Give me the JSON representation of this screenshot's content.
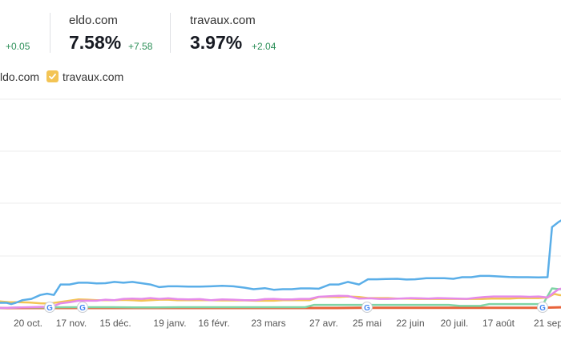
{
  "metrics": [
    {
      "name": "",
      "value": "",
      "delta": "+0.05"
    },
    {
      "name": "eldo.com",
      "value": "7.58%",
      "delta": "+7.58"
    },
    {
      "name": "travaux.com",
      "value": "3.97%",
      "delta": "+2.04"
    }
  ],
  "legend": [
    {
      "label": "ldo.com"
    },
    {
      "label": "travaux.com"
    }
  ],
  "colors": {
    "blue": "#5aaee8",
    "purple": "#e58ae9",
    "yellow": "#f3c454",
    "green": "#7ed4a5",
    "red": "#e8633a",
    "legend_yellow": "#f3c454",
    "grid": "#ececec"
  },
  "icons": {
    "update_marker": "google-icon",
    "checkbox": "check-icon"
  },
  "chart_data": {
    "type": "line",
    "x_tick_labels": [
      "20 oct.",
      "17 nov.",
      "15 déc.",
      "19 janv.",
      "16 févr.",
      "23 mars",
      "27 avr.",
      "25 mai",
      "22 juin",
      "20 juil.",
      "17 août",
      "21 sep"
    ],
    "ylim": [
      0,
      8
    ],
    "grid": "horizontal",
    "update_markers": [
      "17 oct.",
      "23 oct.",
      "9 mai",
      "5 sep"
    ],
    "series": [
      {
        "color": "#5aaee8",
        "points": [
          [
            0,
            0.2
          ],
          [
            3,
            0.2
          ],
          [
            5,
            0.15
          ],
          [
            7,
            0.2
          ],
          [
            10,
            0.3
          ],
          [
            14,
            0.35
          ],
          [
            18,
            0.5
          ],
          [
            21,
            0.55
          ],
          [
            24,
            0.5
          ],
          [
            27,
            0.9
          ],
          [
            31,
            0.9
          ],
          [
            35,
            0.97
          ],
          [
            39,
            0.97
          ],
          [
            43,
            0.94
          ],
          [
            47,
            0.95
          ],
          [
            51,
            1.0
          ],
          [
            55,
            0.97
          ],
          [
            59,
            1.0
          ],
          [
            63,
            0.95
          ],
          [
            67,
            0.9
          ],
          [
            71,
            0.8
          ],
          [
            75,
            0.83
          ],
          [
            79,
            0.83
          ],
          [
            84,
            0.82
          ],
          [
            89,
            0.82
          ],
          [
            94,
            0.83
          ],
          [
            99,
            0.85
          ],
          [
            104,
            0.83
          ],
          [
            109,
            0.78
          ],
          [
            113,
            0.72
          ],
          [
            118,
            0.76
          ],
          [
            122,
            0.7
          ],
          [
            126,
            0.72
          ],
          [
            130,
            0.72
          ],
          [
            134,
            0.75
          ],
          [
            138,
            0.75
          ],
          [
            142,
            0.74
          ],
          [
            147,
            0.9
          ],
          [
            151,
            0.9
          ],
          [
            155,
            1.0
          ],
          [
            160,
            0.9
          ],
          [
            164,
            1.1
          ],
          [
            168,
            1.1
          ],
          [
            172,
            1.11
          ],
          [
            177,
            1.12
          ],
          [
            181,
            1.09
          ],
          [
            185,
            1.1
          ],
          [
            190,
            1.14
          ],
          [
            194,
            1.14
          ],
          [
            198,
            1.14
          ],
          [
            202,
            1.12
          ],
          [
            206,
            1.18
          ],
          [
            210,
            1.18
          ],
          [
            214,
            1.23
          ],
          [
            218,
            1.23
          ],
          [
            222,
            1.21
          ],
          [
            227,
            1.19
          ],
          [
            231,
            1.18
          ],
          [
            235,
            1.18
          ],
          [
            240,
            1.17
          ],
          [
            244,
            1.18
          ],
          [
            246,
            3.1
          ],
          [
            249,
            3.3
          ],
          [
            251,
            3.4
          ]
        ]
      },
      {
        "color": "#e58ae9",
        "points": [
          [
            0,
            0.0
          ],
          [
            21,
            0.05
          ],
          [
            24,
            0.08
          ],
          [
            27,
            0.18
          ],
          [
            31,
            0.22
          ],
          [
            35,
            0.28
          ],
          [
            43,
            0.28
          ],
          [
            47,
            0.32
          ],
          [
            51,
            0.3
          ],
          [
            55,
            0.35
          ],
          [
            59,
            0.36
          ],
          [
            63,
            0.35
          ],
          [
            67,
            0.38
          ],
          [
            71,
            0.35
          ],
          [
            75,
            0.37
          ],
          [
            79,
            0.34
          ],
          [
            84,
            0.33
          ],
          [
            89,
            0.34
          ],
          [
            94,
            0.3
          ],
          [
            99,
            0.33
          ],
          [
            104,
            0.32
          ],
          [
            109,
            0.3
          ],
          [
            114,
            0.3
          ],
          [
            118,
            0.34
          ],
          [
            122,
            0.35
          ],
          [
            126,
            0.33
          ],
          [
            130,
            0.33
          ],
          [
            134,
            0.35
          ],
          [
            138,
            0.35
          ],
          [
            142,
            0.43
          ],
          [
            147,
            0.45
          ],
          [
            151,
            0.47
          ],
          [
            155,
            0.46
          ],
          [
            160,
            0.36
          ],
          [
            165,
            0.37
          ],
          [
            169,
            0.35
          ],
          [
            173,
            0.35
          ],
          [
            178,
            0.36
          ],
          [
            183,
            0.38
          ],
          [
            187,
            0.37
          ],
          [
            191,
            0.36
          ],
          [
            195,
            0.38
          ],
          [
            199,
            0.37
          ],
          [
            204,
            0.36
          ],
          [
            208,
            0.35
          ],
          [
            212,
            0.39
          ],
          [
            216,
            0.42
          ],
          [
            220,
            0.44
          ],
          [
            224,
            0.44
          ],
          [
            228,
            0.44
          ],
          [
            232,
            0.44
          ],
          [
            236,
            0.43
          ],
          [
            240,
            0.44
          ],
          [
            244,
            0.4
          ],
          [
            247,
            0.6
          ],
          [
            249,
            0.72
          ],
          [
            251,
            0.76
          ]
        ]
      },
      {
        "color": "#f3c454",
        "points": [
          [
            0,
            0.25
          ],
          [
            4,
            0.22
          ],
          [
            8,
            0.22
          ],
          [
            13,
            0.21
          ],
          [
            18,
            0.18
          ],
          [
            22,
            0.17
          ],
          [
            26,
            0.22
          ],
          [
            31,
            0.28
          ],
          [
            35,
            0.33
          ],
          [
            39,
            0.32
          ],
          [
            43,
            0.3
          ],
          [
            47,
            0.3
          ],
          [
            51,
            0.3
          ],
          [
            55,
            0.31
          ],
          [
            59,
            0.3
          ],
          [
            63,
            0.28
          ],
          [
            67,
            0.3
          ],
          [
            71,
            0.32
          ],
          [
            75,
            0.32
          ],
          [
            79,
            0.3
          ],
          [
            84,
            0.3
          ],
          [
            89,
            0.3
          ],
          [
            94,
            0.3
          ],
          [
            99,
            0.29
          ],
          [
            104,
            0.29
          ],
          [
            109,
            0.29
          ],
          [
            114,
            0.28
          ],
          [
            118,
            0.28
          ],
          [
            122,
            0.28
          ],
          [
            126,
            0.3
          ],
          [
            130,
            0.3
          ],
          [
            134,
            0.3
          ],
          [
            138,
            0.3
          ],
          [
            142,
            0.42
          ],
          [
            147,
            0.43
          ],
          [
            151,
            0.42
          ],
          [
            155,
            0.44
          ],
          [
            160,
            0.42
          ],
          [
            164,
            0.38
          ],
          [
            169,
            0.38
          ],
          [
            173,
            0.38
          ],
          [
            177,
            0.36
          ],
          [
            182,
            0.36
          ],
          [
            186,
            0.35
          ],
          [
            190,
            0.35
          ],
          [
            195,
            0.35
          ],
          [
            199,
            0.35
          ],
          [
            203,
            0.35
          ],
          [
            207,
            0.35
          ],
          [
            211,
            0.35
          ],
          [
            215,
            0.35
          ],
          [
            219,
            0.36
          ],
          [
            223,
            0.36
          ],
          [
            227,
            0.36
          ],
          [
            231,
            0.38
          ],
          [
            236,
            0.38
          ],
          [
            240,
            0.38
          ],
          [
            244,
            0.4
          ],
          [
            247,
            0.54
          ],
          [
            249,
            0.5
          ],
          [
            251,
            0.48
          ]
        ]
      },
      {
        "color": "#7ed4a5",
        "points": [
          [
            0,
            0.0
          ],
          [
            10,
            0.02
          ],
          [
            20,
            0.02
          ],
          [
            30,
            0.03
          ],
          [
            40,
            0.03
          ],
          [
            50,
            0.03
          ],
          [
            60,
            0.02
          ],
          [
            70,
            0.02
          ],
          [
            80,
            0.03
          ],
          [
            90,
            0.03
          ],
          [
            100,
            0.03
          ],
          [
            110,
            0.03
          ],
          [
            120,
            0.03
          ],
          [
            130,
            0.03
          ],
          [
            136,
            0.03
          ],
          [
            140,
            0.12
          ],
          [
            150,
            0.12
          ],
          [
            160,
            0.12
          ],
          [
            170,
            0.12
          ],
          [
            180,
            0.12
          ],
          [
            190,
            0.12
          ],
          [
            200,
            0.12
          ],
          [
            205,
            0.08
          ],
          [
            210,
            0.08
          ],
          [
            214,
            0.08
          ],
          [
            218,
            0.15
          ],
          [
            225,
            0.15
          ],
          [
            230,
            0.15
          ],
          [
            236,
            0.15
          ],
          [
            242,
            0.15
          ],
          [
            246,
            0.75
          ],
          [
            249,
            0.72
          ],
          [
            251,
            0.72
          ]
        ]
      },
      {
        "color": "#e8633a",
        "points": [
          [
            0,
            0.0
          ],
          [
            50,
            0.0
          ],
          [
            100,
            0.0
          ],
          [
            150,
            0.0
          ],
          [
            160,
            0.01
          ],
          [
            200,
            0.01
          ],
          [
            240,
            0.01
          ],
          [
            251,
            0.03
          ]
        ]
      }
    ]
  }
}
